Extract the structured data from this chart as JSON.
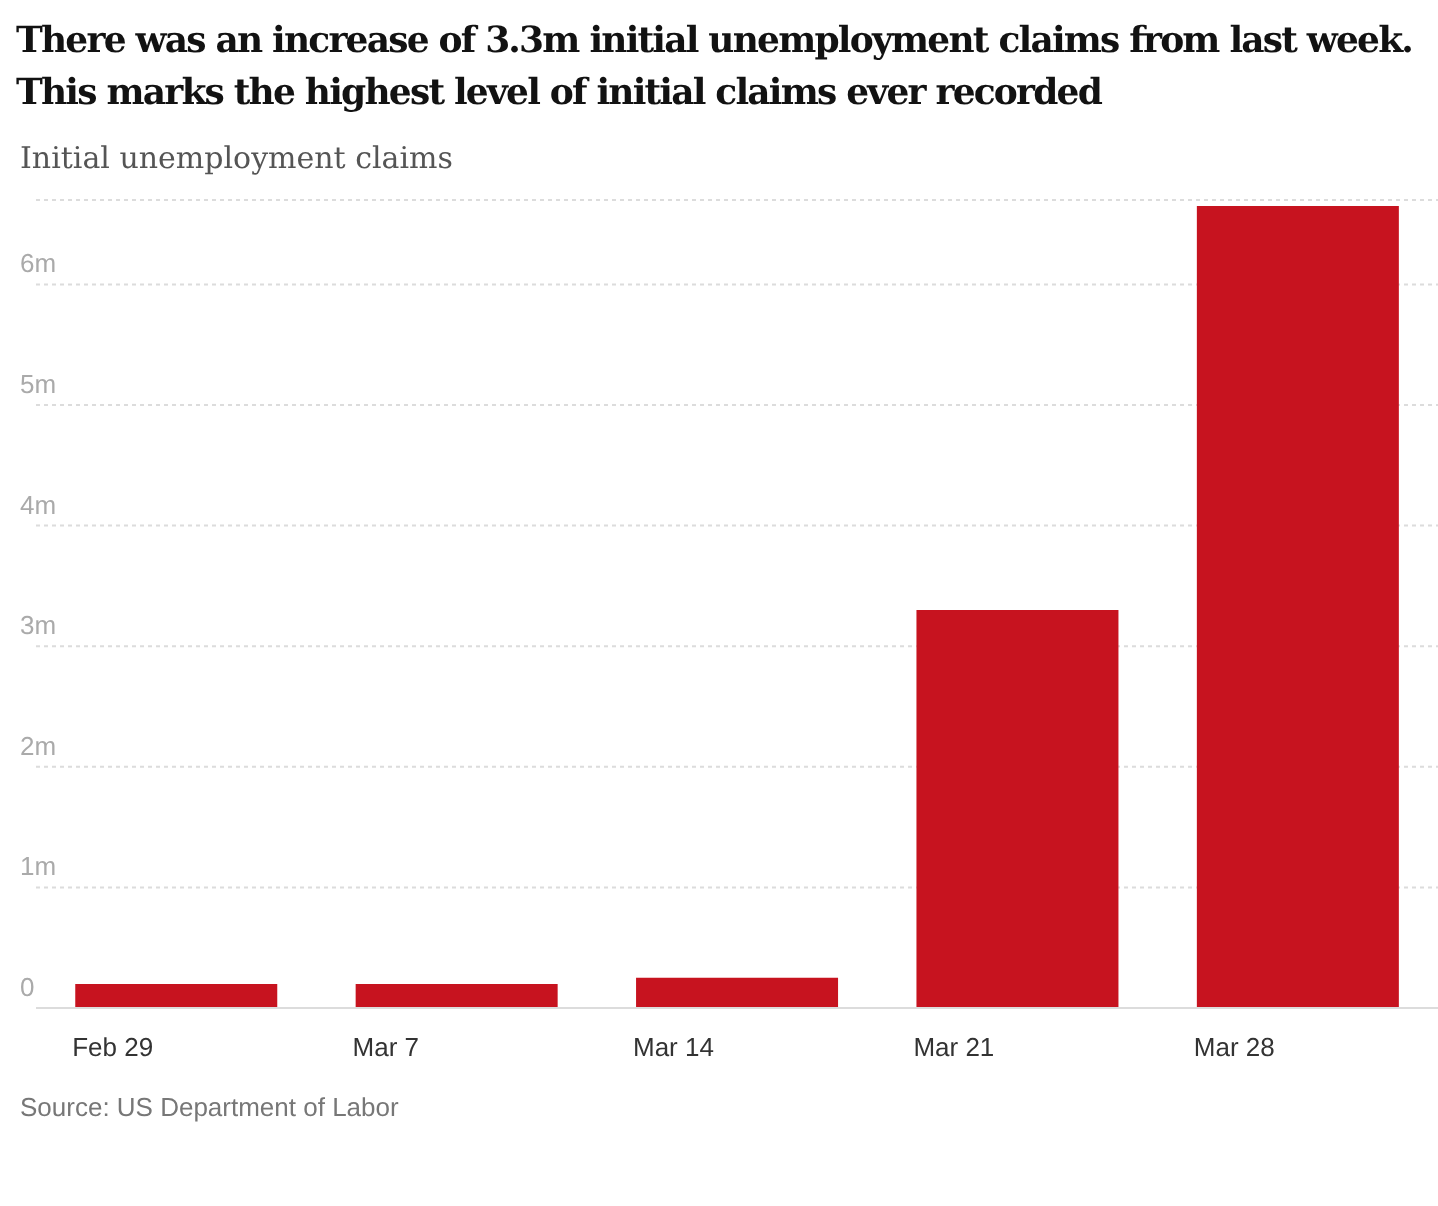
{
  "chart_data": {
    "type": "bar",
    "title": "There was an increase of 3.3m initial unemployment claims from last week. This marks the highest level of initial claims ever recorded",
    "ylabel": "Initial unemployment claims",
    "categories": [
      "Feb 29",
      "Mar 7",
      "Mar 14",
      "Mar 21",
      "Mar 28"
    ],
    "values": [
      0.2,
      0.2,
      0.25,
      3.3,
      6.65
    ],
    "color": "#c7131f",
    "ylim": [
      0,
      6.7
    ],
    "yticks": [
      0,
      {
        "value": 1,
        "label": "1m"
      },
      {
        "value": 2,
        "label": "2m"
      },
      {
        "value": 3,
        "label": "3m"
      },
      {
        "value": 4,
        "label": "4m"
      },
      {
        "value": 5,
        "label": "5m"
      },
      {
        "value": 6,
        "label": "6m"
      }
    ],
    "grid": "y",
    "annotations": [
      "Source: US Department of Labor"
    ]
  }
}
